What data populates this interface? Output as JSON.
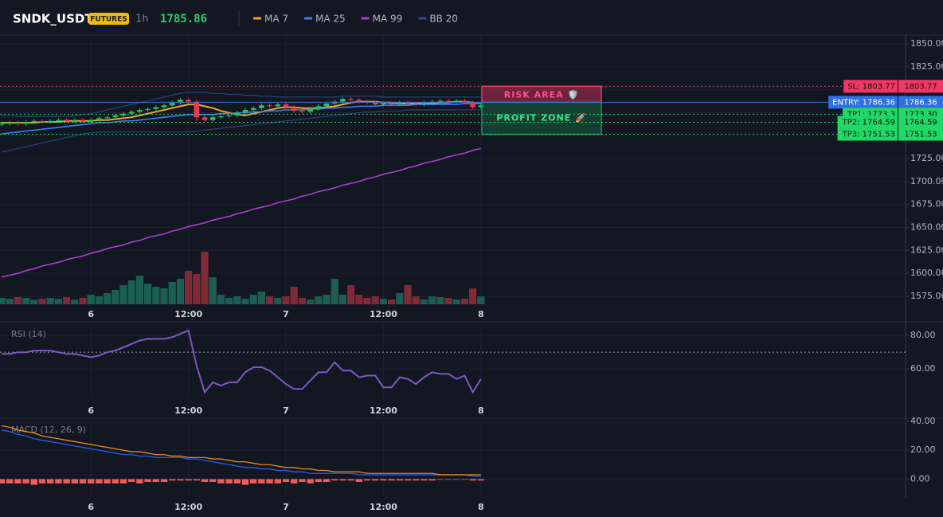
{
  "header": {
    "symbol": "SNDK_USDT",
    "badge": "FUTURES",
    "interval": "1h",
    "price": 1785.86
  },
  "chart_data": [
    {
      "type": "candlestick",
      "categories": [
        null,
        null,
        null,
        null,
        null,
        null,
        null,
        null,
        null,
        null,
        null,
        "6",
        null,
        null,
        null,
        null,
        null,
        null,
        null,
        null,
        null,
        null,
        null,
        "12:00",
        null,
        null,
        null,
        null,
        null,
        null,
        null,
        null,
        null,
        null,
        null,
        "7",
        null,
        null,
        null,
        null,
        null,
        null,
        null,
        null,
        null,
        null,
        null,
        "12:00",
        null,
        null,
        null,
        null,
        null,
        null,
        null,
        null,
        null,
        null,
        null,
        "8"
      ],
      "open": [
        1762,
        1763,
        1764,
        1763,
        1765,
        1766,
        1765,
        1766,
        1767,
        1766,
        1767,
        1766,
        1767,
        1769,
        1770,
        1772,
        1774,
        1776,
        1778,
        1779,
        1781,
        1783,
        1786,
        1789,
        1787,
        1770,
        1767,
        1770,
        1771,
        1772,
        1775,
        1778,
        1780,
        1783,
        1782,
        1784,
        1781,
        1777,
        1776,
        1779,
        1782,
        1785,
        1787,
        1790,
        1789,
        1787,
        1786,
        1784,
        1785,
        1784,
        1786,
        1785,
        1784,
        1786,
        1787,
        1788,
        1787,
        1788,
        1786,
        1781
      ],
      "high": [
        1765,
        1766,
        1766,
        1767,
        1768,
        1768,
        1768,
        1769,
        1769,
        1769,
        1769,
        1769,
        1771,
        1772,
        1774,
        1776,
        1778,
        1780,
        1781,
        1783,
        1785,
        1788,
        1791,
        1791,
        1789,
        1772,
        1772,
        1773,
        1774,
        1777,
        1780,
        1782,
        1785,
        1785,
        1786,
        1786,
        1783,
        1779,
        1781,
        1784,
        1787,
        1789,
        1792,
        1792,
        1791,
        1789,
        1788,
        1787,
        1787,
        1788,
        1788,
        1787,
        1788,
        1789,
        1790,
        1790,
        1790,
        1790,
        1788,
        1785
      ],
      "low": [
        1760,
        1761,
        1761,
        1761,
        1763,
        1763,
        1763,
        1764,
        1764,
        1764,
        1764,
        1764,
        1765,
        1767,
        1768,
        1770,
        1772,
        1774,
        1776,
        1777,
        1779,
        1781,
        1784,
        1785,
        1766,
        1765,
        1765,
        1768,
        1769,
        1770,
        1773,
        1776,
        1778,
        1780,
        1780,
        1779,
        1775,
        1774,
        1774,
        1777,
        1780,
        1783,
        1785,
        1787,
        1785,
        1784,
        1782,
        1782,
        1782,
        1782,
        1783,
        1782,
        1782,
        1784,
        1785,
        1785,
        1785,
        1784,
        1779,
        1779
      ],
      "close": [
        1763,
        1764,
        1763,
        1765,
        1766,
        1765,
        1766,
        1767,
        1766,
        1767,
        1766,
        1767,
        1769,
        1770,
        1772,
        1774,
        1776,
        1778,
        1779,
        1781,
        1783,
        1786,
        1789,
        1787,
        1770,
        1767,
        1770,
        1771,
        1772,
        1775,
        1778,
        1780,
        1783,
        1782,
        1784,
        1781,
        1777,
        1776,
        1779,
        1782,
        1785,
        1787,
        1790,
        1789,
        1787,
        1786,
        1784,
        1785,
        1784,
        1786,
        1785,
        1784,
        1786,
        1787,
        1788,
        1787,
        1788,
        1786,
        1781,
        1783
      ],
      "volume": [
        8,
        7,
        9,
        8,
        6,
        7,
        8,
        7,
        9,
        6,
        8,
        12,
        10,
        14,
        18,
        24,
        30,
        36,
        26,
        22,
        20,
        28,
        32,
        42,
        38,
        66,
        34,
        12,
        8,
        10,
        7,
        12,
        16,
        10,
        8,
        10,
        22,
        8,
        6,
        10,
        12,
        32,
        12,
        24,
        12,
        8,
        10,
        7,
        6,
        14,
        24,
        10,
        6,
        10,
        9,
        8,
        6,
        7,
        20,
        10
      ],
      "up_color": "#22c55e",
      "down_color": "#f23645",
      "volume_up_color": "#1b5e52",
      "volume_down_color": "#7f2a36",
      "series": [
        {
          "name": "MA 7",
          "color": "#f7a21b",
          "values": [
            1764,
            1764,
            1764,
            1764,
            1764,
            1765,
            1765,
            1765,
            1766,
            1766,
            1766,
            1766,
            1767,
            1767,
            1768,
            1769,
            1770,
            1772,
            1774,
            1776,
            1778,
            1780,
            1782,
            1784,
            1784,
            1782,
            1780,
            1777,
            1775,
            1773,
            1772,
            1774,
            1776,
            1778,
            1780,
            1781,
            1781,
            1780,
            1780,
            1780,
            1781,
            1782,
            1784,
            1786,
            1787,
            1787,
            1787,
            1786,
            1786,
            1785,
            1785,
            1785,
            1785,
            1785,
            1786,
            1786,
            1787,
            1787,
            1786,
            1785
          ]
        },
        {
          "name": "MA 25",
          "color": "#3b7bf6",
          "values": [
            1752,
            1753,
            1754,
            1755,
            1756,
            1757,
            1758,
            1759,
            1760,
            1761,
            1762,
            1763,
            1764,
            1764,
            1765,
            1766,
            1766,
            1767,
            1768,
            1769,
            1770,
            1771,
            1772,
            1773,
            1773,
            1773,
            1773,
            1774,
            1774,
            1775,
            1775,
            1776,
            1776,
            1777,
            1777,
            1778,
            1778,
            1778,
            1779,
            1779,
            1780,
            1780,
            1781,
            1781,
            1782,
            1782,
            1782,
            1783,
            1783,
            1783,
            1783,
            1784,
            1784,
            1784,
            1784,
            1784,
            1784,
            1785,
            1785,
            1785
          ]
        },
        {
          "name": "MA 99",
          "color": "#a93fcf",
          "values": [
            1596,
            1598,
            1600,
            1603,
            1605,
            1608,
            1610,
            1612,
            1615,
            1617,
            1619,
            1622,
            1624,
            1627,
            1629,
            1631,
            1634,
            1636,
            1639,
            1641,
            1643,
            1646,
            1648,
            1651,
            1653,
            1655,
            1658,
            1660,
            1662,
            1665,
            1667,
            1670,
            1672,
            1674,
            1677,
            1679,
            1681,
            1684,
            1686,
            1689,
            1691,
            1693,
            1696,
            1698,
            1700,
            1703,
            1705,
            1708,
            1710,
            1712,
            1715,
            1717,
            1720,
            1722,
            1724,
            1727,
            1729,
            1731,
            1734,
            1736
          ]
        },
        {
          "name": "BB 20",
          "color": "#2c4a8c",
          "upper": [
            1772,
            1772,
            1771,
            1771,
            1771,
            1771,
            1771,
            1771,
            1771,
            1772,
            1773,
            1774,
            1776,
            1778,
            1780,
            1782,
            1784,
            1786,
            1788,
            1790,
            1792,
            1794,
            1796,
            1797,
            1797,
            1797,
            1796,
            1796,
            1795,
            1795,
            1794,
            1794,
            1793,
            1793,
            1792,
            1792,
            1792,
            1792,
            1792,
            1792,
            1792,
            1792,
            1793,
            1793,
            1793,
            1793,
            1793,
            1792,
            1792,
            1792,
            1792,
            1792,
            1792,
            1792,
            1792,
            1792,
            1792,
            1792,
            1792,
            1792
          ],
          "lower": [
            1732,
            1734,
            1736,
            1738,
            1740,
            1742,
            1744,
            1746,
            1748,
            1750,
            1752,
            1753,
            1754,
            1754,
            1754,
            1754,
            1754,
            1754,
            1754,
            1754,
            1754,
            1754,
            1754,
            1754,
            1755,
            1756,
            1757,
            1758,
            1759,
            1760,
            1761,
            1762,
            1763,
            1764,
            1765,
            1766,
            1767,
            1768,
            1769,
            1770,
            1771,
            1772,
            1773,
            1774,
            1775,
            1776,
            1776,
            1777,
            1777,
            1777,
            1778,
            1778,
            1778,
            1778,
            1778,
            1778,
            1778,
            1778,
            1778,
            1778
          ]
        }
      ],
      "levels": [
        {
          "value": 1803.77,
          "label": "SL: 1803.77",
          "value_label": "1803.77",
          "color": "#f23665",
          "style": "dotted"
        },
        {
          "value": 1786.36,
          "label": "ENTRY: 1786.36",
          "value_label": "1786.36",
          "color": "#2f6fe8",
          "style": "solid"
        },
        {
          "value": 1773.3,
          "label": "TP1: 1773.3",
          "value_label": "1773.30",
          "color": "#1fd866",
          "style": "dotted"
        },
        {
          "value": 1764.59,
          "label": "TP2: 1764.59",
          "value_label": "1764.59",
          "color": "#1fd866",
          "style": "dotted"
        },
        {
          "value": 1751.53,
          "label": "TP3: 1751.53",
          "value_label": "1751.53",
          "color": "#1fd866",
          "style": "dotted"
        }
      ],
      "zones": [
        {
          "label": "RISK AREA 🛡️",
          "color": "#f23665",
          "text_color": "#ff4f86"
        },
        {
          "label": "PROFIT ZONE 🚀",
          "color": "#0f9a5a",
          "text_color": "#3fe08a"
        }
      ],
      "ylim": [
        1566.3,
        1858.7
      ],
      "yticks": [
        {
          "value": 1850,
          "label": "1850.00"
        },
        {
          "value": 1825,
          "label": "1825.00"
        },
        {
          "value": 1800,
          "label": "1800.00"
        },
        {
          "value": 1775,
          "label": "1775.00"
        },
        {
          "value": 1750,
          "label": "1750.00"
        },
        {
          "value": 1725,
          "label": "1725.00"
        },
        {
          "value": 1700,
          "label": "1700.00"
        },
        {
          "value": 1675,
          "label": "1675.00"
        },
        {
          "value": 1650,
          "label": "1650.00"
        },
        {
          "value": 1625,
          "label": "1625.00"
        },
        {
          "value": 1600,
          "label": "1600.00"
        },
        {
          "value": 1575,
          "label": "1575.00"
        }
      ],
      "grid": true
    },
    {
      "type": "line",
      "title": "RSI (14)",
      "color": "#7e57c2",
      "values": [
        69,
        69,
        70,
        70,
        71,
        71,
        71,
        70,
        69,
        69,
        68,
        67,
        68,
        70,
        71,
        73,
        75,
        77,
        78,
        78,
        78,
        79,
        81,
        83,
        62,
        46,
        52,
        50,
        52,
        52,
        58,
        61,
        61,
        59,
        55,
        51,
        48,
        48,
        53,
        58,
        58,
        64,
        59,
        59,
        55,
        56,
        56,
        49,
        49,
        55,
        54,
        51,
        55,
        58,
        57,
        57,
        54,
        56,
        46,
        54
      ],
      "hlines": [
        70
      ],
      "ylim": [
        42.4,
        86.3
      ],
      "yticks": [
        {
          "value": 80,
          "label": "80.00"
        },
        {
          "value": 60,
          "label": "60.00"
        }
      ],
      "grid": true
    },
    {
      "type": "macd",
      "title": "MACD (12, 26, 9)",
      "series": [
        {
          "color": "#2962ff",
          "values": [
            34,
            33,
            31,
            30,
            28,
            27,
            26,
            25,
            24,
            23,
            22,
            21,
            20,
            19,
            18,
            17,
            17,
            16,
            16,
            15,
            15,
            15,
            15,
            14,
            14,
            13,
            12,
            11,
            10,
            9,
            8,
            8,
            7,
            7,
            6,
            6,
            5,
            5,
            4,
            4,
            4,
            4,
            4,
            4,
            3,
            3,
            3,
            3,
            3,
            3,
            3,
            3,
            3,
            3,
            3,
            3,
            3,
            3,
            2,
            2
          ]
        },
        {
          "color": "#f7931a",
          "values": [
            37,
            36,
            34,
            33,
            32,
            30,
            29,
            28,
            27,
            26,
            25,
            24,
            23,
            22,
            21,
            20,
            19,
            19,
            18,
            17,
            17,
            16,
            16,
            15,
            15,
            15,
            14,
            14,
            13,
            12,
            12,
            11,
            10,
            10,
            9,
            8,
            8,
            7,
            7,
            6,
            6,
            5,
            5,
            5,
            5,
            4,
            4,
            4,
            4,
            4,
            4,
            4,
            4,
            4,
            3,
            3,
            3,
            3,
            3,
            3
          ]
        }
      ],
      "histogram": [
        -3,
        -3,
        -3,
        -3,
        -4,
        -3,
        -3,
        -3,
        -3,
        -3,
        -3,
        -3,
        -3,
        -3,
        -3,
        -3,
        -2,
        -3,
        -2,
        -2,
        -2,
        -1,
        -1,
        -1,
        -1,
        -2,
        -2,
        -3,
        -3,
        -3,
        -4,
        -3,
        -3,
        -3,
        -3,
        -2,
        -3,
        -2,
        -3,
        -2,
        -2,
        -1,
        -1,
        -1,
        -2,
        -1,
        -1,
        -1,
        -1,
        -1,
        -1,
        -1,
        -1,
        -1,
        0,
        0,
        0,
        0,
        -1,
        -1
      ],
      "histogram_color": "#f05b5b",
      "ylim": [
        -11.4,
        40.6
      ],
      "yticks": [
        {
          "value": 40,
          "label": "40.00"
        },
        {
          "value": 20,
          "label": "20.00"
        },
        {
          "value": 0,
          "label": "0.00"
        }
      ],
      "grid": true
    }
  ]
}
